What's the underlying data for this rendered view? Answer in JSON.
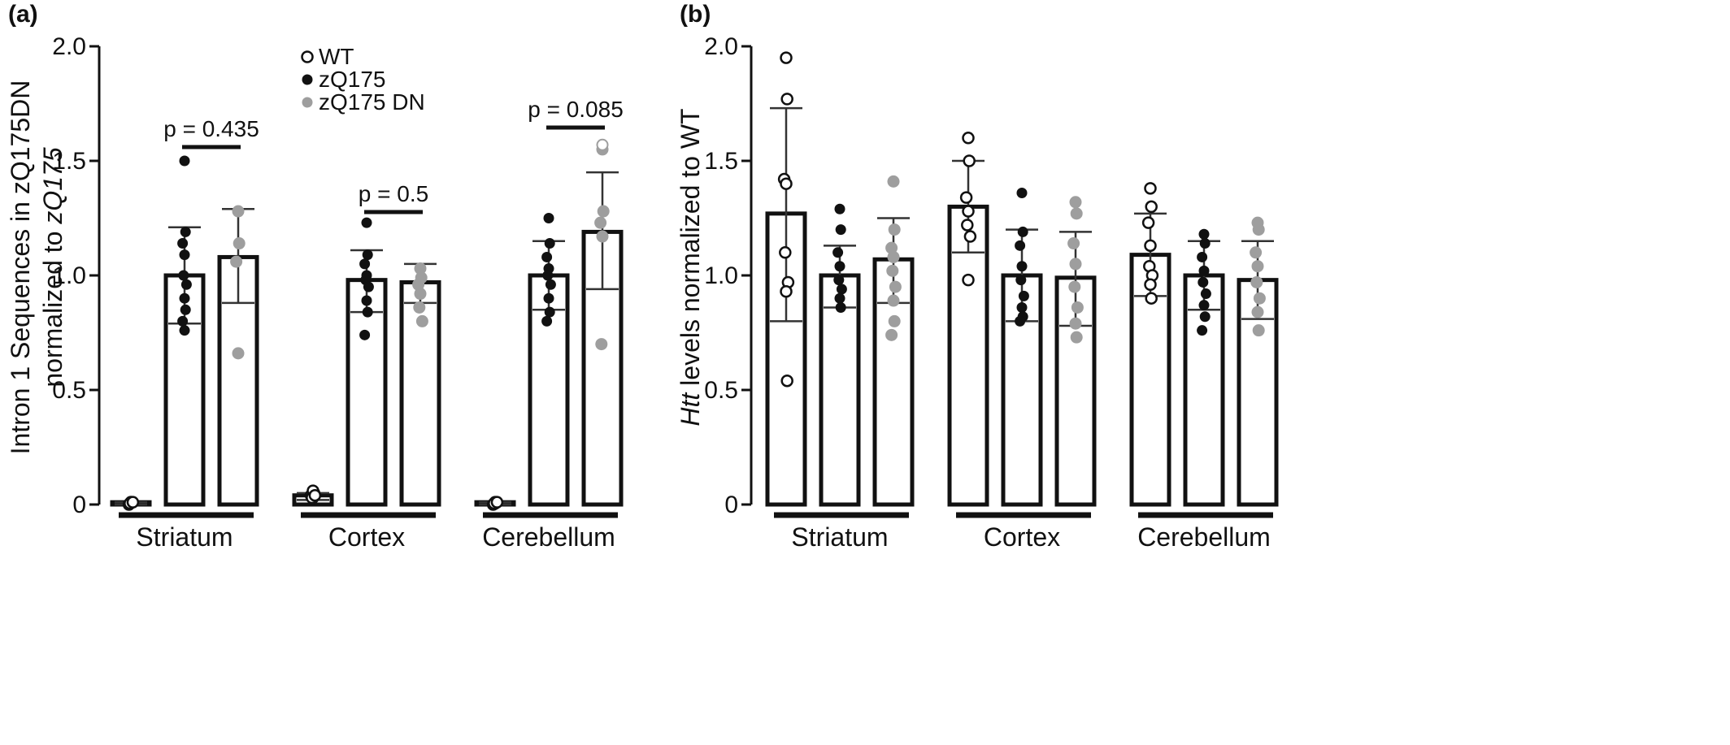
{
  "colors": {
    "WT": "#ffffff",
    "zQ175": "#111111",
    "zQ175 DN": "#9e9e9e",
    "axis": "#111111",
    "errorbar": "#333333"
  },
  "chart_data": [
    {
      "panel_label": "(a)",
      "type": "bar",
      "ylabel_lines": [
        [
          {
            "text": "Intron 1 Sequences in zQ175DN",
            "italic": false
          }
        ],
        [
          {
            "text": "normalized to ",
            "italic": false
          },
          {
            "text": "zQ175",
            "italic": true
          }
        ]
      ],
      "ylim": [
        0,
        2.0
      ],
      "yticks": [
        "0",
        "0.5",
        "1.0",
        "1.5",
        "2.0"
      ],
      "ytick_values": [
        0,
        0.5,
        1.0,
        1.5,
        2.0
      ],
      "grid": false,
      "legend_position": "top-center",
      "legend": [
        "WT",
        "zQ175",
        "zQ175 DN"
      ],
      "categories": [
        "Striatum",
        "Cortex",
        "Cerebellum"
      ],
      "series": [
        {
          "name": "WT",
          "marker": "open-circle",
          "values": [
            0.01,
            0.04,
            0.01
          ],
          "error": [
            [
              0.0,
              0.01
            ],
            [
              0.02,
              0.05
            ],
            [
              0.0,
              0.01
            ]
          ],
          "points": [
            [
              0.01,
              0.01,
              0.0,
              0.01,
              0.005,
              0.01
            ],
            [
              0.03,
              0.05,
              0.04,
              0.06,
              0.03,
              0.04
            ],
            [
              0.005,
              0.01,
              0.0,
              0.01,
              0.005,
              0.01
            ]
          ]
        },
        {
          "name": "zQ175",
          "marker": "filled-circle",
          "values": [
            1.0,
            0.98,
            1.0
          ],
          "error": [
            [
              0.79,
              1.21
            ],
            [
              0.84,
              1.11
            ],
            [
              0.85,
              1.15
            ]
          ],
          "points": [
            [
              1.5,
              1.19,
              1.14,
              1.09,
              1.0,
              0.96,
              0.9,
              0.85,
              0.8,
              0.76
            ],
            [
              1.23,
              1.09,
              1.05,
              1.0,
              0.98,
              0.95,
              0.89,
              0.84,
              0.74
            ],
            [
              1.25,
              1.14,
              1.08,
              1.03,
              1.0,
              0.96,
              0.9,
              0.84,
              0.8
            ]
          ]
        },
        {
          "name": "zQ175 DN",
          "marker": "gray-circle",
          "values": [
            1.08,
            0.97,
            1.19
          ],
          "error": [
            [
              0.88,
              1.29
            ],
            [
              0.88,
              1.05
            ],
            [
              0.94,
              1.45
            ]
          ],
          "points": [
            [
              1.28,
              1.14,
              1.06,
              0.66
            ],
            [
              1.03,
              0.99,
              0.96,
              0.92,
              0.86,
              0.8
            ],
            [
              1.55,
              1.28,
              1.23,
              1.17,
              0.7
            ]
          ],
          "open_points": [
            [],
            [],
            [
              1.57
            ]
          ]
        }
      ],
      "annotations": [
        {
          "text": "p = 0.435",
          "category": "Striatum"
        },
        {
          "text": "p = 0.5",
          "category": "Cortex"
        },
        {
          "text": "p = 0.085",
          "category": "Cerebellum"
        }
      ]
    },
    {
      "panel_label": "(b)",
      "type": "bar",
      "ylabel_lines": [
        [
          {
            "text": "Htt",
            "italic": true
          },
          {
            "text": " levels normalized to WT",
            "italic": false
          }
        ]
      ],
      "ylim": [
        0,
        2.0
      ],
      "yticks": [
        "0",
        "0.5",
        "1.0",
        "1.5",
        "2.0"
      ],
      "ytick_values": [
        0,
        0.5,
        1.0,
        1.5,
        2.0
      ],
      "grid": false,
      "categories": [
        "Striatum",
        "Cortex",
        "Cerebellum"
      ],
      "series": [
        {
          "name": "WT",
          "marker": "open-circle",
          "values": [
            1.27,
            1.3,
            1.09
          ],
          "error": [
            [
              0.8,
              1.73
            ],
            [
              1.1,
              1.5
            ],
            [
              0.91,
              1.27
            ]
          ],
          "points": [
            [
              1.95,
              1.77,
              1.42,
              1.4,
              1.1,
              0.97,
              0.93,
              0.54
            ],
            [
              1.6,
              1.5,
              1.34,
              1.28,
              1.22,
              1.17,
              0.98
            ],
            [
              1.38,
              1.3,
              1.23,
              1.13,
              1.04,
              1.0,
              0.96,
              0.9
            ]
          ]
        },
        {
          "name": "zQ175",
          "marker": "filled-circle",
          "values": [
            1.0,
            1.0,
            1.0
          ],
          "error": [
            [
              0.86,
              1.13
            ],
            [
              0.8,
              1.2
            ],
            [
              0.85,
              1.15
            ]
          ],
          "points": [
            [
              1.29,
              1.2,
              1.1,
              1.04,
              0.98,
              0.94,
              0.9,
              0.86
            ],
            [
              1.36,
              1.19,
              1.13,
              1.04,
              0.98,
              0.91,
              0.86,
              0.82,
              0.8
            ],
            [
              1.18,
              1.14,
              1.08,
              1.02,
              0.97,
              0.92,
              0.87,
              0.82,
              0.76
            ]
          ]
        },
        {
          "name": "zQ175 DN",
          "marker": "gray-circle",
          "values": [
            1.07,
            0.99,
            0.98
          ],
          "error": [
            [
              0.88,
              1.25
            ],
            [
              0.78,
              1.19
            ],
            [
              0.81,
              1.15
            ]
          ],
          "points": [
            [
              1.41,
              1.2,
              1.12,
              1.08,
              1.02,
              0.95,
              0.89,
              0.8,
              0.74
            ],
            [
              1.32,
              1.27,
              1.14,
              1.05,
              0.95,
              0.86,
              0.79,
              0.73
            ],
            [
              1.23,
              1.2,
              1.1,
              1.04,
              0.97,
              0.9,
              0.84,
              0.76
            ]
          ]
        }
      ]
    }
  ]
}
